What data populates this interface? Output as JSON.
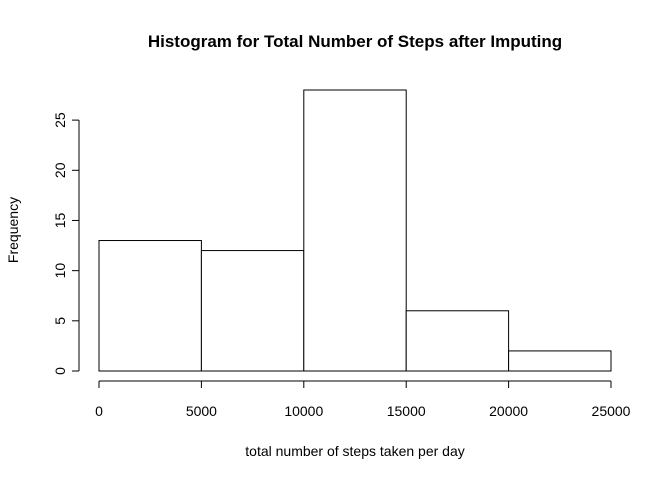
{
  "chart_data": {
    "type": "bar",
    "subtype": "histogram",
    "title": "Histogram for Total Number of Steps after Imputing",
    "xlabel": "total number of steps taken per day",
    "ylabel": "Frequency",
    "bins": [
      {
        "from": 0,
        "to": 5000,
        "count": 13
      },
      {
        "from": 5000,
        "to": 10000,
        "count": 12
      },
      {
        "from": 10000,
        "to": 15000,
        "count": 28
      },
      {
        "from": 15000,
        "to": 20000,
        "count": 6
      },
      {
        "from": 20000,
        "to": 25000,
        "count": 2
      }
    ],
    "xlim": [
      0,
      25000
    ],
    "ylim": [
      0,
      28
    ],
    "xticks": [
      0,
      5000,
      10000,
      15000,
      20000,
      25000
    ],
    "yticks": [
      0,
      5,
      10,
      15,
      20,
      25
    ],
    "grid": false,
    "bar_fill": "#ffffff",
    "bar_stroke": "#000000"
  }
}
